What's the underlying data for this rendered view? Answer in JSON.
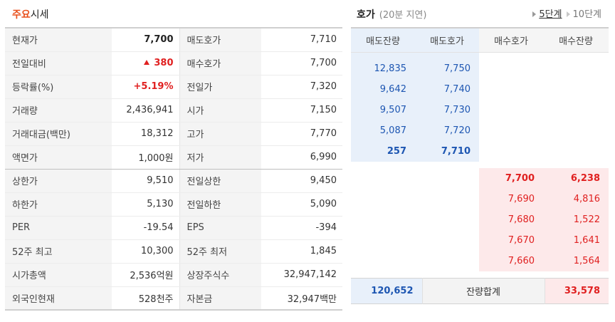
{
  "summary": {
    "title_accent": "주요",
    "title_rest": "시세",
    "rows": [
      {
        "l1": "현재가",
        "v1": "7,700",
        "l2": "매도호가",
        "v2": "7,710"
      },
      {
        "l1": "전일대비",
        "v1": "380",
        "l2": "매수호가",
        "v2": "7,700"
      },
      {
        "l1": "등락률(%)",
        "v1": "+5.19%",
        "l2": "전일가",
        "v2": "7,320"
      },
      {
        "l1": "거래량",
        "v1": "2,436,941",
        "l2": "시가",
        "v2": "7,150"
      },
      {
        "l1": "거래대금(백만)",
        "v1": "18,312",
        "l2": "고가",
        "v2": "7,770"
      },
      {
        "l1": "액면가",
        "v1": "1,000원",
        "l2": "저가",
        "v2": "6,990"
      },
      {
        "l1": "상한가",
        "v1": "9,510",
        "l2": "전일상한",
        "v2": "9,450"
      },
      {
        "l1": "하한가",
        "v1": "5,130",
        "l2": "전일하한",
        "v2": "5,090"
      },
      {
        "l1": "PER",
        "v1": "-19.54",
        "l2": "EPS",
        "v2": "-394"
      },
      {
        "l1": "52주 최고",
        "v1": "10,300",
        "l2": "52주 최저",
        "v2": "1,845"
      },
      {
        "l1": "시가총액",
        "v1": "2,536억원",
        "l2": "상장주식수",
        "v2": "32,947,142"
      },
      {
        "l1": "외국인현재",
        "v1": "528천주",
        "l2": "자본금",
        "v2": "32,947백만"
      }
    ]
  },
  "orderbook": {
    "title": "호가",
    "subtitle": "(20분 지연)",
    "tab_5": "5단계",
    "tab_10": "10단계",
    "headers": [
      "매도잔량",
      "매도호가",
      "매수호가",
      "매수잔량"
    ],
    "asks": [
      {
        "qty": "12,835",
        "price": "7,750"
      },
      {
        "qty": "9,642",
        "price": "7,740"
      },
      {
        "qty": "9,507",
        "price": "7,730"
      },
      {
        "qty": "5,087",
        "price": "7,720"
      },
      {
        "qty": "257",
        "price": "7,710"
      }
    ],
    "bids": [
      {
        "price": "7,700",
        "qty": "6,238"
      },
      {
        "price": "7,690",
        "qty": "4,816"
      },
      {
        "price": "7,680",
        "qty": "1,522"
      },
      {
        "price": "7,670",
        "qty": "1,641"
      },
      {
        "price": "7,660",
        "qty": "1,564"
      }
    ],
    "total_ask": "120,652",
    "total_label": "잔량합계",
    "total_bid": "33,578"
  },
  "colors": {
    "accent_orange": "#e8501c",
    "up_red": "#e02020",
    "ask_blue": "#1d56b2",
    "ask_bg": "#e8f0fa",
    "bid_bg": "#fde9ea"
  }
}
